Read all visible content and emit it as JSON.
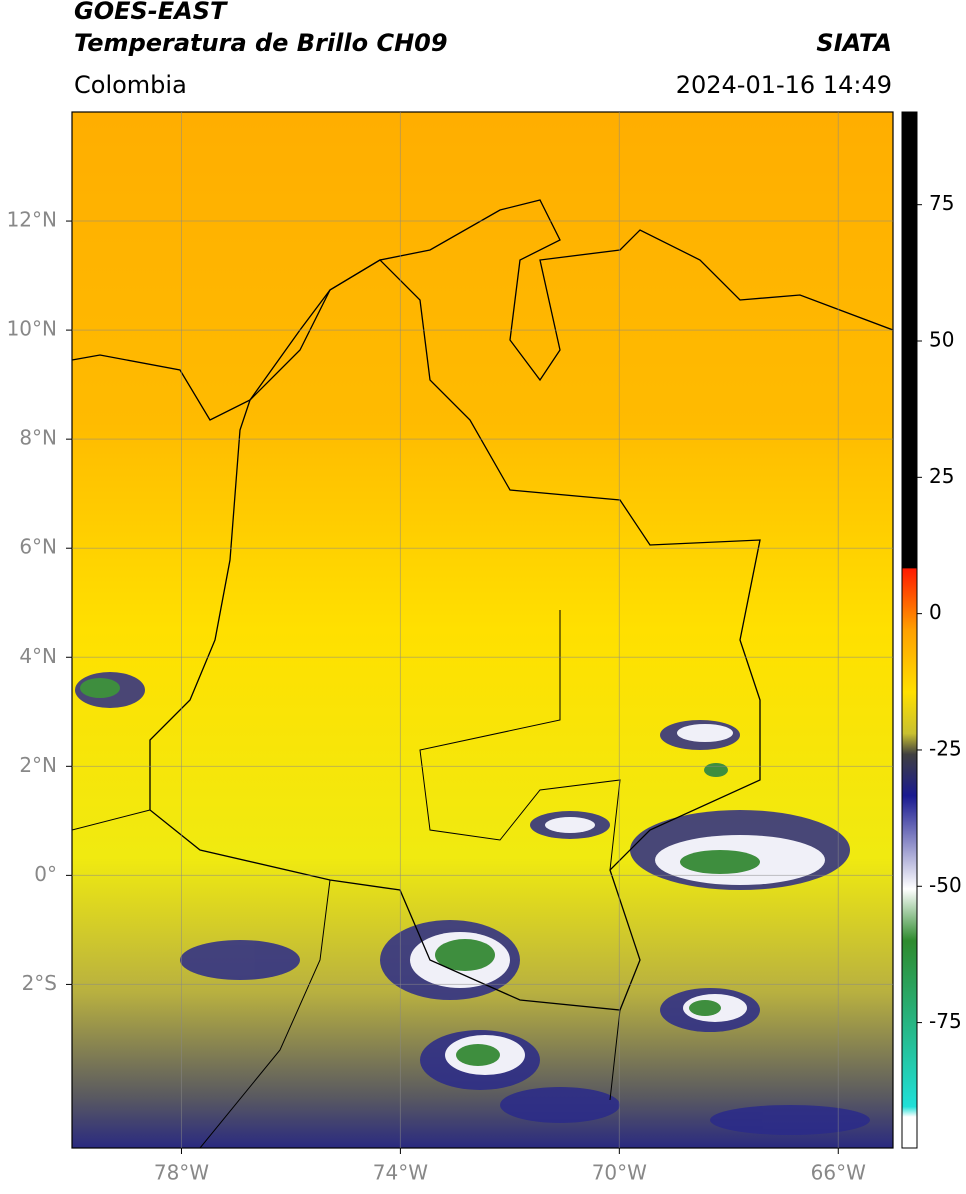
{
  "header": {
    "satellite": "GOES-EAST",
    "product": "Temperatura de Brillo CH09",
    "region": "Colombia",
    "source": "SIATA",
    "datetime": "2024-01-16 14:49"
  },
  "map": {
    "xlim": [
      -80,
      -65
    ],
    "ylim": [
      -5,
      14
    ],
    "xticks": [
      {
        "value": -78,
        "label": "78°W"
      },
      {
        "value": -74,
        "label": "74°W"
      },
      {
        "value": -70,
        "label": "70°W"
      },
      {
        "value": -66,
        "label": "66°W"
      }
    ],
    "yticks": [
      {
        "value": 12,
        "label": "12°N"
      },
      {
        "value": 10,
        "label": "10°N"
      },
      {
        "value": 8,
        "label": "8°N"
      },
      {
        "value": 6,
        "label": "6°N"
      },
      {
        "value": 4,
        "label": "4°N"
      },
      {
        "value": 2,
        "label": "2°N"
      },
      {
        "value": 0,
        "label": "0°"
      },
      {
        "value": -2,
        "label": "2°S"
      }
    ],
    "grid": true
  },
  "colorbar": {
    "lim": [
      -98,
      92
    ],
    "ticks": [
      75,
      50,
      25,
      0,
      -25,
      -50,
      -75
    ]
  }
}
